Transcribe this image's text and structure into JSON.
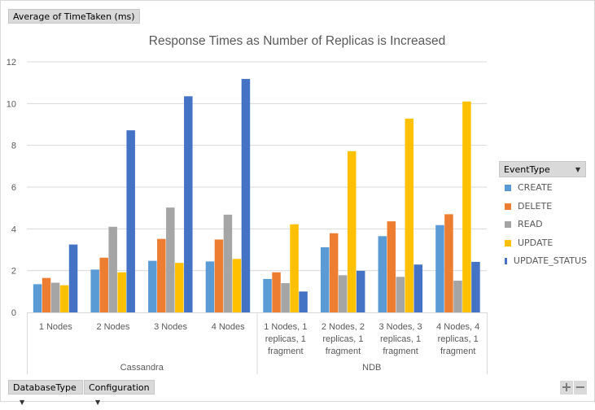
{
  "value_field": "Average of TimeTaken (ms)",
  "filters": {
    "legend_field": "EventType",
    "axis_fields": [
      "DatabaseType",
      "Configuration"
    ]
  },
  "zoom_buttons": {
    "plus": "+",
    "minus": "−"
  },
  "chart_data": {
    "type": "bar",
    "title": "Response Times as Number of Replicas is Increased",
    "xlabel": "",
    "ylabel": "",
    "ylim": [
      0,
      12
    ],
    "yticks": [
      "0",
      "2",
      "4",
      "6",
      "8",
      "10",
      "12"
    ],
    "grid": true,
    "legend_placement": "right",
    "groups": [
      {
        "label": "Cassandra",
        "categories": [
          "1 Nodes",
          "2 Nodes",
          "3 Nodes",
          "4 Nodes"
        ]
      },
      {
        "label": "NDB",
        "categories": [
          "1 Nodes, 1 replicas, 1 fragment",
          "2 Nodes, 2 replicas, 1 fragment",
          "3 Nodes, 3 replicas, 1 fragment",
          "4 Nodes, 4 replicas, 1 fragment"
        ]
      }
    ],
    "series": [
      {
        "name": "CREATE",
        "color": "#5b9bd5",
        "values": [
          1.35,
          2.05,
          2.47,
          2.44,
          1.6,
          3.12,
          3.65,
          4.18
        ]
      },
      {
        "name": "DELETE",
        "color": "#ed7d31",
        "values": [
          1.65,
          2.62,
          3.52,
          3.49,
          1.92,
          3.79,
          4.36,
          4.7
        ]
      },
      {
        "name": "READ",
        "color": "#a5a5a5",
        "values": [
          1.42,
          4.1,
          5.02,
          4.68,
          1.4,
          1.78,
          1.7,
          1.52
        ]
      },
      {
        "name": "UPDATE",
        "color": "#ffc000",
        "values": [
          1.3,
          1.92,
          2.37,
          2.56,
          4.22,
          7.72,
          9.28,
          10.1
        ]
      },
      {
        "name": "UPDATE_STATUS",
        "color": "#4472c4",
        "values": [
          3.25,
          8.72,
          10.35,
          11.18,
          1.0,
          1.99,
          2.29,
          2.42
        ]
      }
    ]
  }
}
